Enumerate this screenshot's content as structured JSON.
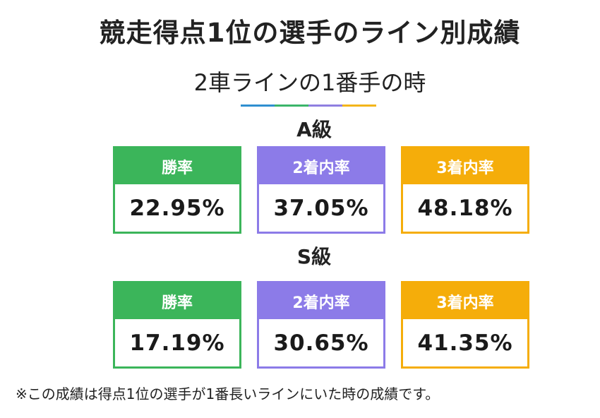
{
  "title": "競走得点1位の選手のライン別成績",
  "subtitle": "2車ラインの1番手の時",
  "accent_colors": [
    "#2f8fd0",
    "#3bb56a",
    "#8f7fe0",
    "#f3b51a"
  ],
  "grades": [
    {
      "label": "A級",
      "cards": [
        {
          "header": "勝率",
          "value": "22.95%",
          "color": "#3bb55a"
        },
        {
          "header": "2着内率",
          "value": "37.05%",
          "color": "#8c7be8"
        },
        {
          "header": "3着内率",
          "value": "48.18%",
          "color": "#f5ad0a"
        }
      ]
    },
    {
      "label": "S級",
      "cards": [
        {
          "header": "勝率",
          "value": "17.19%",
          "color": "#3bb55a"
        },
        {
          "header": "2着内率",
          "value": "30.65%",
          "color": "#8c7be8"
        },
        {
          "header": "3着内率",
          "value": "41.35%",
          "color": "#f5ad0a"
        }
      ]
    }
  ],
  "note": "※この成績は得点1位の選手が1番長いラインにいた時の成績です。"
}
